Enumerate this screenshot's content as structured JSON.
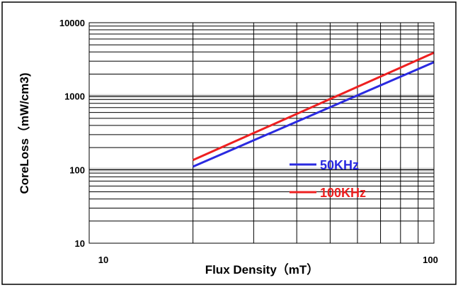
{
  "chart_data": {
    "type": "line",
    "title": "",
    "xlabel": "Flux Density（mT）",
    "ylabel": "CoreLoss（mW/cm3)",
    "x_scale": "log",
    "y_scale": "log",
    "xlim": [
      10,
      100
    ],
    "ylim": [
      10,
      10000
    ],
    "x_ticks": [
      "10",
      "100"
    ],
    "y_ticks": [
      "10",
      "100",
      "1000",
      "10000"
    ],
    "grid": true,
    "legend_position": "center-right",
    "series": [
      {
        "name": "50KHz",
        "color": "#2a2ae0",
        "x": [
          20,
          100
        ],
        "y": [
          110,
          2900
        ]
      },
      {
        "name": "100KHz",
        "color": "#ee2020",
        "x": [
          20,
          100
        ],
        "y": [
          135,
          3900
        ]
      }
    ]
  }
}
